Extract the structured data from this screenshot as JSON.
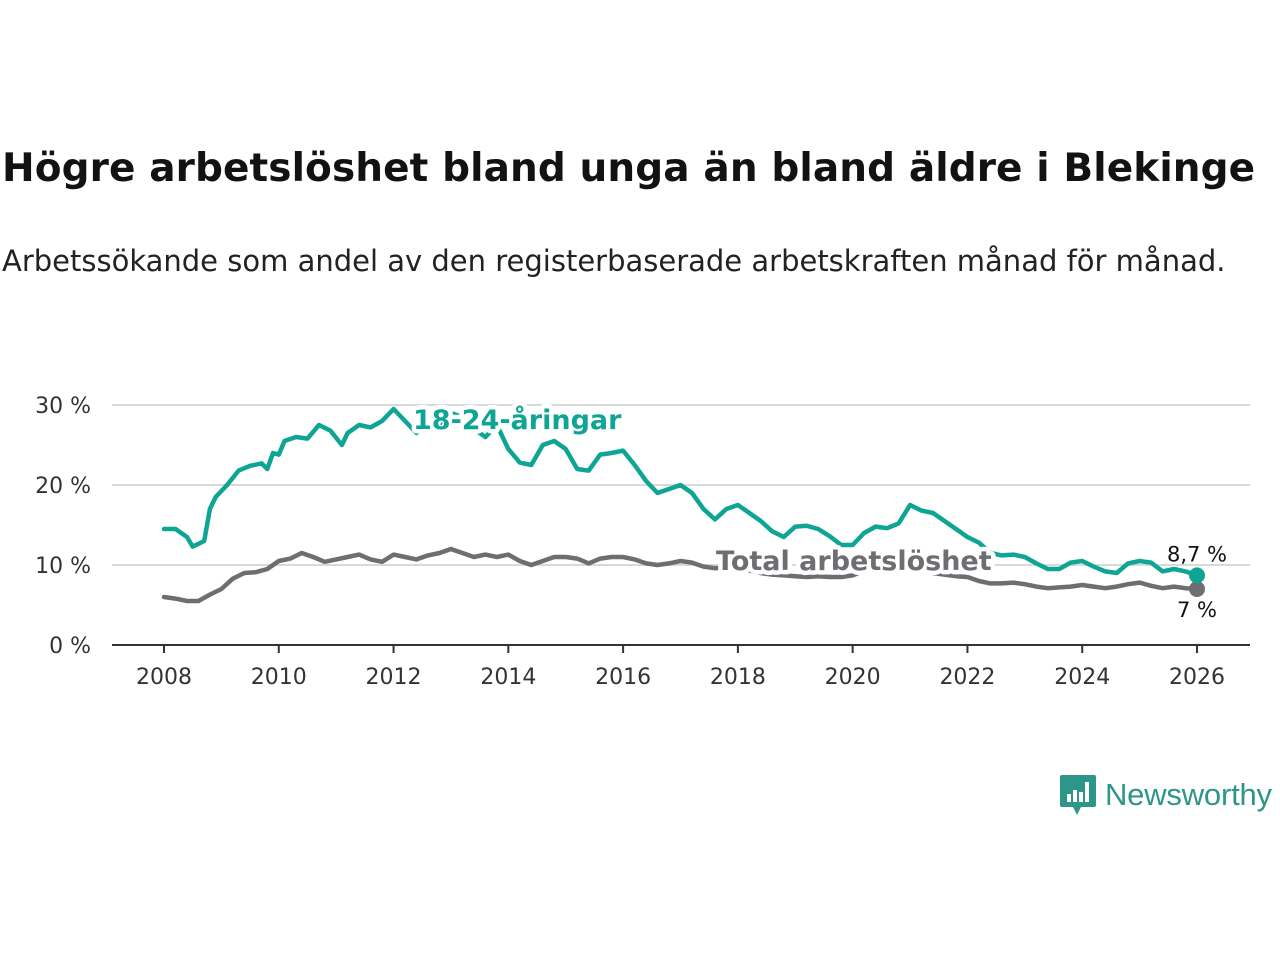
{
  "title": "Högre arbetslöshet bland unga än bland äldre i Blekinge",
  "subtitle": "Arbetssökande som andel av den registerbaserade arbetskraften månad för månad.",
  "brand": "Newsworthy",
  "colors": {
    "youth": "#0fa595",
    "total": "#6e6d72",
    "grid": "#d9d9d9",
    "axis": "#333333",
    "brand": "#2e9688"
  },
  "chart_data": {
    "type": "line",
    "title": "Högre arbetslöshet bland unga än bland äldre i Blekinge",
    "xlabel": "",
    "ylabel": "",
    "xlim": [
      2008,
      2026
    ],
    "ylim": [
      0,
      30
    ],
    "x_ticks": [
      2008,
      2010,
      2012,
      2014,
      2016,
      2018,
      2020,
      2022,
      2024,
      2026
    ],
    "y_ticks": [
      0,
      10,
      20,
      30
    ],
    "y_tick_labels": [
      "0 %",
      "10 %",
      "20 %",
      "30 %"
    ],
    "grid": true,
    "series": [
      {
        "name": "18-24-åringar",
        "label": "18-24-åringar",
        "color": "#0fa595",
        "end_label": "8,7 %",
        "points": [
          [
            2008.0,
            14.5
          ],
          [
            2008.2,
            14.5
          ],
          [
            2008.4,
            13.5
          ],
          [
            2008.5,
            12.3
          ],
          [
            2008.7,
            13.0
          ],
          [
            2008.8,
            17.0
          ],
          [
            2008.9,
            18.5
          ],
          [
            2009.1,
            20.0
          ],
          [
            2009.3,
            21.8
          ],
          [
            2009.5,
            22.4
          ],
          [
            2009.7,
            22.7
          ],
          [
            2009.8,
            22.0
          ],
          [
            2009.9,
            24.0
          ],
          [
            2010.0,
            23.8
          ],
          [
            2010.1,
            25.5
          ],
          [
            2010.3,
            26.0
          ],
          [
            2010.5,
            25.8
          ],
          [
            2010.7,
            27.5
          ],
          [
            2010.9,
            26.8
          ],
          [
            2011.1,
            25.0
          ],
          [
            2011.2,
            26.5
          ],
          [
            2011.4,
            27.5
          ],
          [
            2011.6,
            27.2
          ],
          [
            2011.8,
            28.0
          ],
          [
            2012.0,
            29.5
          ],
          [
            2012.2,
            28.0
          ],
          [
            2012.4,
            26.5
          ],
          [
            2012.6,
            28.0
          ],
          [
            2012.8,
            27.0
          ],
          [
            2013.0,
            29.0
          ],
          [
            2013.2,
            28.5
          ],
          [
            2013.4,
            27.0
          ],
          [
            2013.6,
            26.0
          ],
          [
            2013.8,
            27.5
          ],
          [
            2014.0,
            24.5
          ],
          [
            2014.2,
            22.8
          ],
          [
            2014.4,
            22.5
          ],
          [
            2014.6,
            25.0
          ],
          [
            2014.8,
            25.5
          ],
          [
            2015.0,
            24.5
          ],
          [
            2015.2,
            22.0
          ],
          [
            2015.4,
            21.8
          ],
          [
            2015.6,
            23.8
          ],
          [
            2015.8,
            24.0
          ],
          [
            2016.0,
            24.3
          ],
          [
            2016.2,
            22.5
          ],
          [
            2016.4,
            20.5
          ],
          [
            2016.6,
            19.0
          ],
          [
            2016.8,
            19.5
          ],
          [
            2017.0,
            20.0
          ],
          [
            2017.2,
            19.0
          ],
          [
            2017.4,
            17.0
          ],
          [
            2017.6,
            15.7
          ],
          [
            2017.8,
            17.0
          ],
          [
            2018.0,
            17.5
          ],
          [
            2018.2,
            16.5
          ],
          [
            2018.4,
            15.5
          ],
          [
            2018.6,
            14.2
          ],
          [
            2018.8,
            13.5
          ],
          [
            2019.0,
            14.8
          ],
          [
            2019.2,
            14.9
          ],
          [
            2019.4,
            14.5
          ],
          [
            2019.6,
            13.6
          ],
          [
            2019.8,
            12.5
          ],
          [
            2020.0,
            12.5
          ],
          [
            2020.2,
            14.0
          ],
          [
            2020.4,
            14.8
          ],
          [
            2020.6,
            14.6
          ],
          [
            2020.8,
            15.2
          ],
          [
            2021.0,
            17.5
          ],
          [
            2021.2,
            16.8
          ],
          [
            2021.4,
            16.5
          ],
          [
            2021.6,
            15.5
          ],
          [
            2021.8,
            14.5
          ],
          [
            2022.0,
            13.5
          ],
          [
            2022.2,
            12.8
          ],
          [
            2022.4,
            11.5
          ],
          [
            2022.6,
            11.2
          ],
          [
            2022.8,
            11.3
          ],
          [
            2023.0,
            11.0
          ],
          [
            2023.2,
            10.2
          ],
          [
            2023.4,
            9.5
          ],
          [
            2023.6,
            9.5
          ],
          [
            2023.8,
            10.3
          ],
          [
            2024.0,
            10.5
          ],
          [
            2024.2,
            9.8
          ],
          [
            2024.4,
            9.2
          ],
          [
            2024.6,
            9.0
          ],
          [
            2024.8,
            10.2
          ],
          [
            2025.0,
            10.5
          ],
          [
            2025.2,
            10.3
          ],
          [
            2025.4,
            9.2
          ],
          [
            2025.6,
            9.5
          ],
          [
            2025.8,
            9.2
          ],
          [
            2026.0,
            8.7
          ]
        ]
      },
      {
        "name": "Total arbetslöshet",
        "label": "Total arbetslöshet",
        "color": "#6e6d72",
        "end_label": "7 %",
        "points": [
          [
            2008.0,
            6.0
          ],
          [
            2008.2,
            5.8
          ],
          [
            2008.4,
            5.5
          ],
          [
            2008.6,
            5.5
          ],
          [
            2008.8,
            6.3
          ],
          [
            2009.0,
            7.0
          ],
          [
            2009.2,
            8.3
          ],
          [
            2009.4,
            9.0
          ],
          [
            2009.6,
            9.1
          ],
          [
            2009.8,
            9.5
          ],
          [
            2010.0,
            10.5
          ],
          [
            2010.2,
            10.8
          ],
          [
            2010.4,
            11.5
          ],
          [
            2010.6,
            11.0
          ],
          [
            2010.8,
            10.4
          ],
          [
            2011.0,
            10.7
          ],
          [
            2011.2,
            11.0
          ],
          [
            2011.4,
            11.3
          ],
          [
            2011.6,
            10.7
          ],
          [
            2011.8,
            10.4
          ],
          [
            2012.0,
            11.3
          ],
          [
            2012.2,
            11.0
          ],
          [
            2012.4,
            10.7
          ],
          [
            2012.6,
            11.2
          ],
          [
            2012.8,
            11.5
          ],
          [
            2013.0,
            12.0
          ],
          [
            2013.2,
            11.5
          ],
          [
            2013.4,
            11.0
          ],
          [
            2013.6,
            11.3
          ],
          [
            2013.8,
            11.0
          ],
          [
            2014.0,
            11.3
          ],
          [
            2014.2,
            10.5
          ],
          [
            2014.4,
            10.0
          ],
          [
            2014.6,
            10.5
          ],
          [
            2014.8,
            11.0
          ],
          [
            2015.0,
            11.0
          ],
          [
            2015.2,
            10.8
          ],
          [
            2015.4,
            10.2
          ],
          [
            2015.6,
            10.8
          ],
          [
            2015.8,
            11.0
          ],
          [
            2016.0,
            11.0
          ],
          [
            2016.2,
            10.7
          ],
          [
            2016.4,
            10.2
          ],
          [
            2016.6,
            10.0
          ],
          [
            2016.8,
            10.2
          ],
          [
            2017.0,
            10.5
          ],
          [
            2017.2,
            10.3
          ],
          [
            2017.4,
            9.8
          ],
          [
            2017.6,
            9.6
          ],
          [
            2017.8,
            9.7
          ],
          [
            2018.0,
            9.5
          ],
          [
            2018.2,
            9.3
          ],
          [
            2018.4,
            9.0
          ],
          [
            2018.6,
            8.8
          ],
          [
            2018.8,
            8.7
          ],
          [
            2019.0,
            8.6
          ],
          [
            2019.2,
            8.5
          ],
          [
            2019.4,
            8.6
          ],
          [
            2019.6,
            8.5
          ],
          [
            2019.8,
            8.5
          ],
          [
            2020.0,
            8.7
          ],
          [
            2020.2,
            9.3
          ],
          [
            2020.4,
            9.6
          ],
          [
            2020.6,
            9.7
          ],
          [
            2020.8,
            9.6
          ],
          [
            2021.0,
            9.5
          ],
          [
            2021.2,
            9.3
          ],
          [
            2021.4,
            9.0
          ],
          [
            2021.6,
            8.8
          ],
          [
            2021.8,
            8.6
          ],
          [
            2022.0,
            8.5
          ],
          [
            2022.2,
            8.0
          ],
          [
            2022.4,
            7.7
          ],
          [
            2022.6,
            7.7
          ],
          [
            2022.8,
            7.8
          ],
          [
            2023.0,
            7.6
          ],
          [
            2023.2,
            7.3
          ],
          [
            2023.4,
            7.1
          ],
          [
            2023.6,
            7.2
          ],
          [
            2023.8,
            7.3
          ],
          [
            2024.0,
            7.5
          ],
          [
            2024.2,
            7.3
          ],
          [
            2024.4,
            7.1
          ],
          [
            2024.6,
            7.3
          ],
          [
            2024.8,
            7.6
          ],
          [
            2025.0,
            7.8
          ],
          [
            2025.2,
            7.4
          ],
          [
            2025.4,
            7.1
          ],
          [
            2025.6,
            7.3
          ],
          [
            2025.8,
            7.1
          ],
          [
            2026.0,
            7.0
          ]
        ]
      }
    ],
    "annotations": [
      {
        "text": "18-24-åringar",
        "series": "18-24-åringar",
        "anchor_x": 2012.4,
        "anchor_y": 27.5
      },
      {
        "text": "Total arbetslöshet",
        "series": "Total arbetslöshet",
        "anchor_x": 2017.7,
        "anchor_y": 10.5
      }
    ]
  }
}
